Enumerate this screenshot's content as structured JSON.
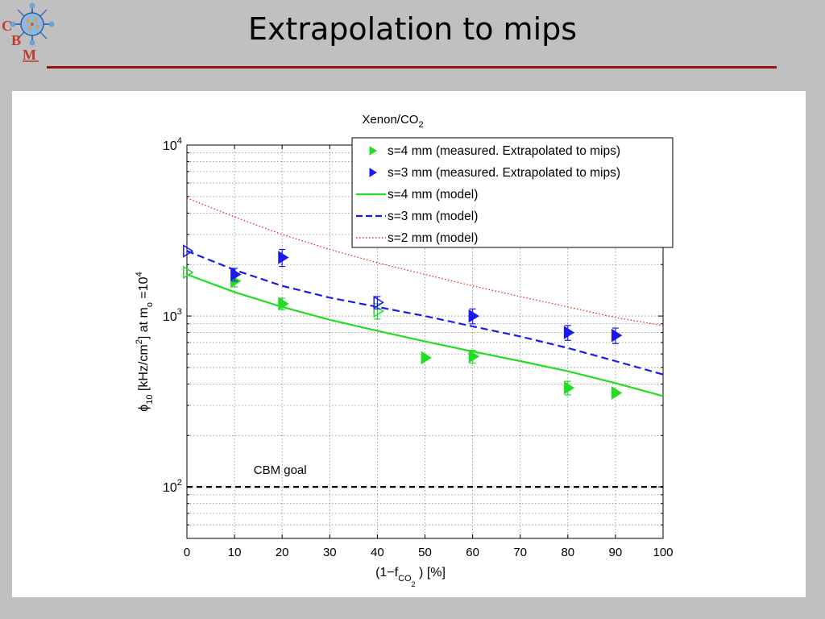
{
  "slide": {
    "title": "Extrapolation to mips",
    "logo": {
      "c": "C",
      "b": "B",
      "m": "M"
    }
  },
  "chart_data": {
    "type": "line",
    "title": "Xenon/CO",
    "title_sub": "2",
    "xlabel": {
      "pre": "(1−f",
      "sub": "CO",
      "subsub": "2",
      "post": ") [%]"
    },
    "ylabel": {
      "pre": "ϕ",
      "sub1": "10",
      "mid": " [kHz/cm",
      "sup1": "2",
      "mid2": "] at m",
      "sub2": "o",
      "mid3": " =10",
      "sup2": "4"
    },
    "xlim": [
      0,
      100
    ],
    "ylim": [
      50,
      10000
    ],
    "yscale": "log",
    "grid": true,
    "legend_position": "top-right",
    "x_ticks": [
      "0",
      "10",
      "20",
      "30",
      "40",
      "50",
      "60",
      "70",
      "80",
      "90",
      "100"
    ],
    "y_ticks": [
      {
        "base": "10",
        "exp": "2",
        "value": 100
      },
      {
        "base": "10",
        "exp": "3",
        "value": 1000
      },
      {
        "base": "10",
        "exp": "4",
        "value": 10000
      }
    ],
    "series": [
      {
        "name": "s=4 mm (measured. Extrapolated to mips)",
        "kind": "scatter",
        "color": "#22dd22",
        "points": [
          {
            "x": 0,
            "y": 1800,
            "open": true
          },
          {
            "x": 10,
            "y": 1600,
            "err": 120
          },
          {
            "x": 20,
            "y": 1180,
            "err": 90
          },
          {
            "x": 40,
            "y": 1070,
            "err": 110,
            "open": true
          },
          {
            "x": 50,
            "y": 570
          },
          {
            "x": 60,
            "y": 580,
            "err": 50
          },
          {
            "x": 80,
            "y": 380,
            "err": 35
          },
          {
            "x": 90,
            "y": 355
          }
        ]
      },
      {
        "name": "s=3 mm (measured. Extrapolated to mips)",
        "kind": "scatter",
        "color": "#1a1aee",
        "points": [
          {
            "x": 0,
            "y": 2400,
            "open": true
          },
          {
            "x": 10,
            "y": 1750,
            "err": 150
          },
          {
            "x": 20,
            "y": 2200,
            "err": 250
          },
          {
            "x": 40,
            "y": 1200,
            "err": 100,
            "open": true
          },
          {
            "x": 60,
            "y": 1000,
            "err": 100
          },
          {
            "x": 80,
            "y": 800,
            "err": 80
          },
          {
            "x": 90,
            "y": 770,
            "err": 80
          }
        ]
      },
      {
        "name": "s=4 mm (model)",
        "kind": "line",
        "style": "solid",
        "color": "#22dd22",
        "points": [
          {
            "x": 0,
            "y": 1750
          },
          {
            "x": 10,
            "y": 1380
          },
          {
            "x": 20,
            "y": 1130
          },
          {
            "x": 30,
            "y": 950
          },
          {
            "x": 40,
            "y": 820
          },
          {
            "x": 50,
            "y": 710
          },
          {
            "x": 60,
            "y": 620
          },
          {
            "x": 70,
            "y": 545
          },
          {
            "x": 80,
            "y": 475
          },
          {
            "x": 90,
            "y": 405
          },
          {
            "x": 100,
            "y": 340
          }
        ]
      },
      {
        "name": "s=3 mm (model)",
        "kind": "line",
        "style": "dashed",
        "color": "#1a1aee",
        "points": [
          {
            "x": 0,
            "y": 2400
          },
          {
            "x": 10,
            "y": 1860
          },
          {
            "x": 20,
            "y": 1500
          },
          {
            "x": 30,
            "y": 1280
          },
          {
            "x": 40,
            "y": 1130
          },
          {
            "x": 50,
            "y": 1000
          },
          {
            "x": 60,
            "y": 870
          },
          {
            "x": 70,
            "y": 760
          },
          {
            "x": 80,
            "y": 650
          },
          {
            "x": 90,
            "y": 545
          },
          {
            "x": 100,
            "y": 455
          }
        ]
      },
      {
        "name": "s=2 mm (model)",
        "kind": "line",
        "style": "dotted",
        "color": "#ee2222",
        "points": [
          {
            "x": 0,
            "y": 4900
          },
          {
            "x": 10,
            "y": 3800
          },
          {
            "x": 20,
            "y": 3000
          },
          {
            "x": 30,
            "y": 2450
          },
          {
            "x": 40,
            "y": 2050
          },
          {
            "x": 50,
            "y": 1750
          },
          {
            "x": 60,
            "y": 1500
          },
          {
            "x": 70,
            "y": 1300
          },
          {
            "x": 80,
            "y": 1130
          },
          {
            "x": 90,
            "y": 980
          },
          {
            "x": 100,
            "y": 880
          }
        ]
      }
    ],
    "reference_line": {
      "label": "CBM goal",
      "y": 100,
      "style": "dashed",
      "color": "#000000"
    }
  }
}
